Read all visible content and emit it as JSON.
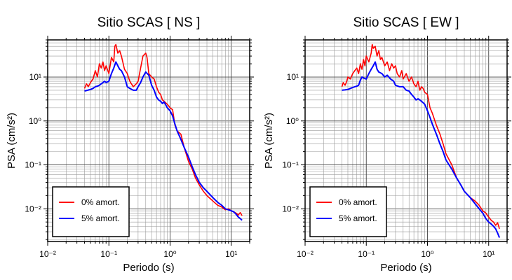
{
  "chart_data": [
    {
      "type": "line",
      "title": "Sitio SCAS [ NS ]",
      "xlabel": "Periodo (s)",
      "ylabel": "PSA (cm/s²)",
      "xscale": "log",
      "yscale": "log",
      "xlim": [
        0.01,
        20
      ],
      "ylim": [
        0.0018,
        70
      ],
      "grid": true,
      "legend": "bottom-left",
      "xticks": [
        "10⁻²",
        "10⁻¹",
        "10⁰",
        "10¹"
      ],
      "yticks": [
        "10⁻²",
        "10⁻¹",
        "10⁰",
        "10¹"
      ],
      "series": [
        {
          "name": "0% amort.",
          "color": "#ff0000",
          "x": [
            0.04,
            0.043,
            0.046,
            0.05,
            0.055,
            0.06,
            0.065,
            0.07,
            0.075,
            0.08,
            0.085,
            0.09,
            0.1,
            0.11,
            0.12,
            0.125,
            0.13,
            0.14,
            0.15,
            0.16,
            0.18,
            0.2,
            0.22,
            0.25,
            0.28,
            0.3,
            0.33,
            0.36,
            0.4,
            0.42,
            0.45,
            0.5,
            0.55,
            0.6,
            0.65,
            0.7,
            0.75,
            0.8,
            0.9,
            1.0,
            1.1,
            1.2,
            1.3,
            1.5,
            1.7,
            2.0,
            2.3,
            2.6,
            3.0,
            3.5,
            4.0,
            5.0,
            6.0,
            7.0,
            8.0,
            9.0,
            10.0,
            11.0,
            12.0,
            13.0,
            14.0,
            15.0
          ],
          "y": [
            5.5,
            7.0,
            6.0,
            7.5,
            9.0,
            14,
            10,
            20,
            16,
            22,
            14,
            18,
            12,
            28,
            22,
            50,
            55,
            35,
            40,
            30,
            15,
            12,
            8,
            6,
            7,
            8,
            16,
            30,
            35,
            28,
            12,
            10,
            9,
            6,
            4.5,
            4.0,
            3.0,
            2.8,
            2.4,
            2.0,
            1.8,
            0.8,
            0.6,
            0.5,
            0.25,
            0.12,
            0.08,
            0.05,
            0.035,
            0.025,
            0.02,
            0.015,
            0.012,
            0.011,
            0.0095,
            0.01,
            0.009,
            0.0085,
            0.008,
            0.0072,
            0.0082,
            0.007
          ]
        },
        {
          "name": "5% amort.",
          "color": "#0000ff",
          "x": [
            0.04,
            0.045,
            0.05,
            0.055,
            0.06,
            0.065,
            0.07,
            0.075,
            0.08,
            0.085,
            0.09,
            0.1,
            0.11,
            0.12,
            0.13,
            0.14,
            0.15,
            0.16,
            0.18,
            0.2,
            0.22,
            0.25,
            0.28,
            0.3,
            0.33,
            0.36,
            0.4,
            0.45,
            0.5,
            0.55,
            0.6,
            0.65,
            0.7,
            0.75,
            0.8,
            0.9,
            1.0,
            1.1,
            1.2,
            1.3,
            1.5,
            1.7,
            2.0,
            2.3,
            2.6,
            3.0,
            3.5,
            4.0,
            5.0,
            6.0,
            7.0,
            8.0,
            9.0,
            10.0,
            11.0,
            12.0,
            13.0,
            14.0,
            15.0
          ],
          "y": [
            4.8,
            5.0,
            5.2,
            5.5,
            6.0,
            6.2,
            6.5,
            7.0,
            7.5,
            8.0,
            7.5,
            8.0,
            12,
            16,
            22,
            18,
            15,
            14,
            10,
            6.0,
            5.5,
            5.0,
            5.0,
            6.0,
            7.5,
            10,
            13,
            11,
            6.5,
            5.0,
            3.5,
            3.0,
            2.8,
            2.5,
            2.7,
            2.0,
            1.7,
            1.3,
            0.85,
            0.6,
            0.38,
            0.25,
            0.15,
            0.09,
            0.06,
            0.04,
            0.03,
            0.025,
            0.018,
            0.014,
            0.012,
            0.01,
            0.0095,
            0.009,
            0.0085,
            0.0075,
            0.0065,
            0.006,
            0.0055
          ]
        }
      ]
    },
    {
      "type": "line",
      "title": "Sitio SCAS [ EW ]",
      "xlabel": "Periodo (s)",
      "ylabel": "PSA (cm/s²)",
      "xscale": "log",
      "yscale": "log",
      "xlim": [
        0.01,
        20
      ],
      "ylim": [
        0.0018,
        70
      ],
      "grid": true,
      "legend": "bottom-left",
      "xticks": [
        "10⁻²",
        "10⁻¹",
        "10⁰",
        "10¹"
      ],
      "yticks": [
        "10⁻²",
        "10⁻¹",
        "10⁰",
        "10¹"
      ],
      "series": [
        {
          "name": "0% amort.",
          "color": "#ff0000",
          "x": [
            0.04,
            0.042,
            0.045,
            0.048,
            0.05,
            0.055,
            0.06,
            0.065,
            0.07,
            0.075,
            0.08,
            0.085,
            0.09,
            0.095,
            0.1,
            0.11,
            0.12,
            0.125,
            0.13,
            0.14,
            0.15,
            0.16,
            0.17,
            0.18,
            0.2,
            0.22,
            0.24,
            0.26,
            0.28,
            0.3,
            0.32,
            0.35,
            0.38,
            0.4,
            0.45,
            0.5,
            0.55,
            0.6,
            0.65,
            0.7,
            0.75,
            0.8,
            0.85,
            0.9,
            1.0,
            1.1,
            1.2,
            1.4,
            1.6,
            1.8,
            2.0,
            2.5,
            3.0,
            3.5,
            4.0,
            5.0,
            6.0,
            7.0,
            8.0,
            9.0,
            10,
            11,
            12,
            13,
            14,
            15
          ],
          "y": [
            6.0,
            7.5,
            6.5,
            8.0,
            10,
            9.0,
            12,
            14,
            16,
            12,
            20,
            15,
            25,
            18,
            30,
            22,
            35,
            55,
            45,
            50,
            30,
            40,
            25,
            28,
            18,
            22,
            14,
            20,
            16,
            18,
            12,
            10,
            14,
            9,
            12,
            8,
            10,
            7,
            6,
            8,
            5,
            6,
            5.5,
            4.5,
            4.0,
            2.0,
            1.5,
            0.8,
            0.5,
            0.3,
            0.18,
            0.1,
            0.05,
            0.035,
            0.025,
            0.018,
            0.015,
            0.012,
            0.009,
            0.008,
            0.0065,
            0.0055,
            0.005,
            0.0042,
            0.0048,
            0.0035
          ]
        },
        {
          "name": "5% amort.",
          "color": "#0000ff",
          "x": [
            0.04,
            0.045,
            0.05,
            0.055,
            0.06,
            0.065,
            0.07,
            0.075,
            0.08,
            0.085,
            0.09,
            0.1,
            0.11,
            0.12,
            0.13,
            0.14,
            0.15,
            0.16,
            0.18,
            0.2,
            0.22,
            0.25,
            0.28,
            0.3,
            0.35,
            0.4,
            0.45,
            0.5,
            0.55,
            0.6,
            0.65,
            0.7,
            0.75,
            0.8,
            0.85,
            0.9,
            1.0,
            1.1,
            1.2,
            1.4,
            1.6,
            1.8,
            2.0,
            2.5,
            3.0,
            3.5,
            4.0,
            5.0,
            6.0,
            7.0,
            8.0,
            9.0,
            10,
            11,
            12,
            13,
            14,
            15
          ],
          "y": [
            5.0,
            5.1,
            5.2,
            5.5,
            5.8,
            6.0,
            6.2,
            6.5,
            8.5,
            10,
            9.5,
            9.0,
            12,
            15,
            18,
            22,
            15,
            13,
            12,
            10,
            11,
            9,
            8,
            6.5,
            6.0,
            6.0,
            5.0,
            4.8,
            4.0,
            3.5,
            3.0,
            3.2,
            3.0,
            2.8,
            2.6,
            2.4,
            1.7,
            1.2,
            0.85,
            0.5,
            0.3,
            0.2,
            0.13,
            0.08,
            0.05,
            0.035,
            0.025,
            0.018,
            0.013,
            0.01,
            0.008,
            0.006,
            0.005,
            0.0045,
            0.004,
            0.0035,
            0.0028,
            0.0022
          ]
        }
      ]
    }
  ]
}
